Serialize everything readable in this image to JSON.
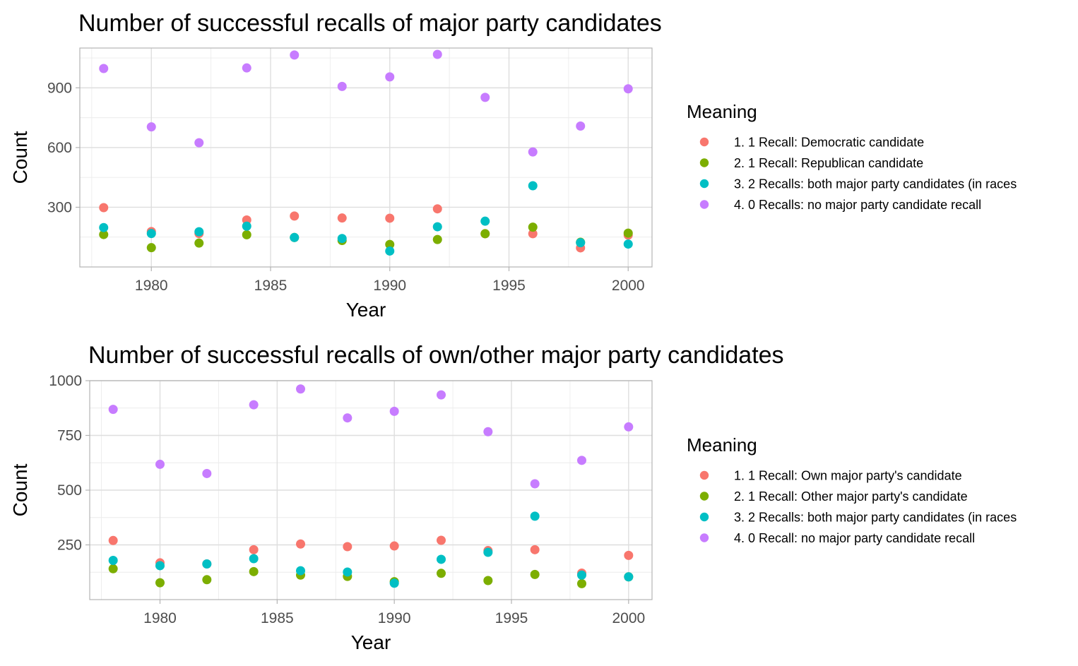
{
  "chart_data": [
    {
      "type": "scatter",
      "title": "Number of successful recalls of major party candidates",
      "xlabel": "Year",
      "ylabel": "Count",
      "xlim": [
        1977,
        2001
      ],
      "ylim": [
        0,
        1100
      ],
      "x_ticks": [
        1980,
        1985,
        1990,
        1995,
        2000
      ],
      "y_ticks": [
        300,
        600,
        900
      ],
      "y_minor_ticks": [
        150,
        450,
        750,
        1050
      ],
      "legend_title": "Meaning",
      "legend_position": "right",
      "grid": true,
      "series": [
        {
          "name": "1. 1 Recall: Democratic candidate",
          "color": "#F8766D",
          "points": [
            [
              1978,
              298
            ],
            [
              1980,
              178
            ],
            [
              1982,
              168
            ],
            [
              1984,
              236
            ],
            [
              1986,
              256
            ],
            [
              1988,
              246
            ],
            [
              1990,
              245
            ],
            [
              1992,
              292
            ],
            [
              1994,
              167
            ],
            [
              1996,
              167
            ],
            [
              1998,
              96
            ],
            [
              2000,
              160
            ]
          ]
        },
        {
          "name": "2. 1 Recall: Republican candidate",
          "color": "#7CAE00",
          "points": [
            [
              1978,
              163
            ],
            [
              1980,
              97
            ],
            [
              1982,
              120
            ],
            [
              1984,
              162
            ],
            [
              1986,
              148
            ],
            [
              1988,
              133
            ],
            [
              1990,
              113
            ],
            [
              1992,
              138
            ],
            [
              1994,
              167
            ],
            [
              1996,
              200
            ],
            [
              1998,
              124
            ],
            [
              2000,
              170
            ]
          ]
        },
        {
          "name": "3. 2 Recalls: both major party candidates (in races",
          "color": "#00BFC4",
          "points": [
            [
              1978,
              198
            ],
            [
              1980,
              168
            ],
            [
              1982,
              177
            ],
            [
              1984,
              205
            ],
            [
              1986,
              148
            ],
            [
              1988,
              143
            ],
            [
              1990,
              80
            ],
            [
              1992,
              202
            ],
            [
              1994,
              230
            ],
            [
              1996,
              408
            ],
            [
              1998,
              122
            ],
            [
              2000,
              115
            ]
          ]
        },
        {
          "name": "4. 0 Recalls: no major party candidate recall",
          "color": "#C77CFF",
          "points": [
            [
              1978,
              997
            ],
            [
              1980,
              704
            ],
            [
              1982,
              624
            ],
            [
              1984,
              1000
            ],
            [
              1986,
              1065
            ],
            [
              1988,
              907
            ],
            [
              1990,
              955
            ],
            [
              1992,
              1068
            ],
            [
              1994,
              852
            ],
            [
              1996,
              578
            ],
            [
              1998,
              708
            ],
            [
              2000,
              895
            ]
          ]
        }
      ]
    },
    {
      "type": "scatter",
      "title": "Number of successful recalls of own/other major party candidates",
      "xlabel": "Year",
      "ylabel": "Count",
      "xlim": [
        1977,
        2001
      ],
      "ylim": [
        0,
        1000
      ],
      "x_ticks": [
        1980,
        1985,
        1990,
        1995,
        2000
      ],
      "y_ticks": [
        250,
        500,
        750,
        1000
      ],
      "y_minor_ticks": [
        125,
        375,
        625,
        875
      ],
      "legend_title": "Meaning",
      "legend_position": "right",
      "grid": true,
      "series": [
        {
          "name": "1. 1 Recall: Own major party's candidate",
          "color": "#F8766D",
          "points": [
            [
              1978,
              270
            ],
            [
              1980,
              168
            ],
            [
              1982,
              163
            ],
            [
              1984,
              228
            ],
            [
              1986,
              254
            ],
            [
              1988,
              242
            ],
            [
              1990,
              245
            ],
            [
              1992,
              271
            ],
            [
              1994,
              224
            ],
            [
              1996,
              228
            ],
            [
              1998,
              121
            ],
            [
              2000,
              202
            ]
          ]
        },
        {
          "name": "2. 1 Recall: Other major party's candidate",
          "color": "#7CAE00",
          "points": [
            [
              1978,
              141
            ],
            [
              1980,
              77
            ],
            [
              1982,
              91
            ],
            [
              1984,
              128
            ],
            [
              1986,
              112
            ],
            [
              1988,
              106
            ],
            [
              1990,
              82
            ],
            [
              1992,
              120
            ],
            [
              1994,
              87
            ],
            [
              1996,
              115
            ],
            [
              1998,
              73
            ],
            [
              2000,
              104
            ]
          ]
        },
        {
          "name": "3. 2 Recalls: both major party candidates (in races",
          "color": "#00BFC4",
          "points": [
            [
              1978,
              179
            ],
            [
              1980,
              155
            ],
            [
              1982,
              163
            ],
            [
              1984,
              187
            ],
            [
              1986,
              132
            ],
            [
              1988,
              126
            ],
            [
              1990,
              75
            ],
            [
              1992,
              184
            ],
            [
              1994,
              216
            ],
            [
              1996,
              381
            ],
            [
              1998,
              112
            ],
            [
              2000,
              104
            ]
          ]
        },
        {
          "name": "4. 0 Recall: no major party candidate recall",
          "color": "#C77CFF",
          "points": [
            [
              1978,
              869
            ],
            [
              1980,
              618
            ],
            [
              1982,
              576
            ],
            [
              1984,
              890
            ],
            [
              1986,
              962
            ],
            [
              1988,
              830
            ],
            [
              1990,
              860
            ],
            [
              1992,
              935
            ],
            [
              1994,
              767
            ],
            [
              1996,
              529
            ],
            [
              1998,
              636
            ],
            [
              2000,
              789
            ]
          ]
        }
      ]
    }
  ]
}
